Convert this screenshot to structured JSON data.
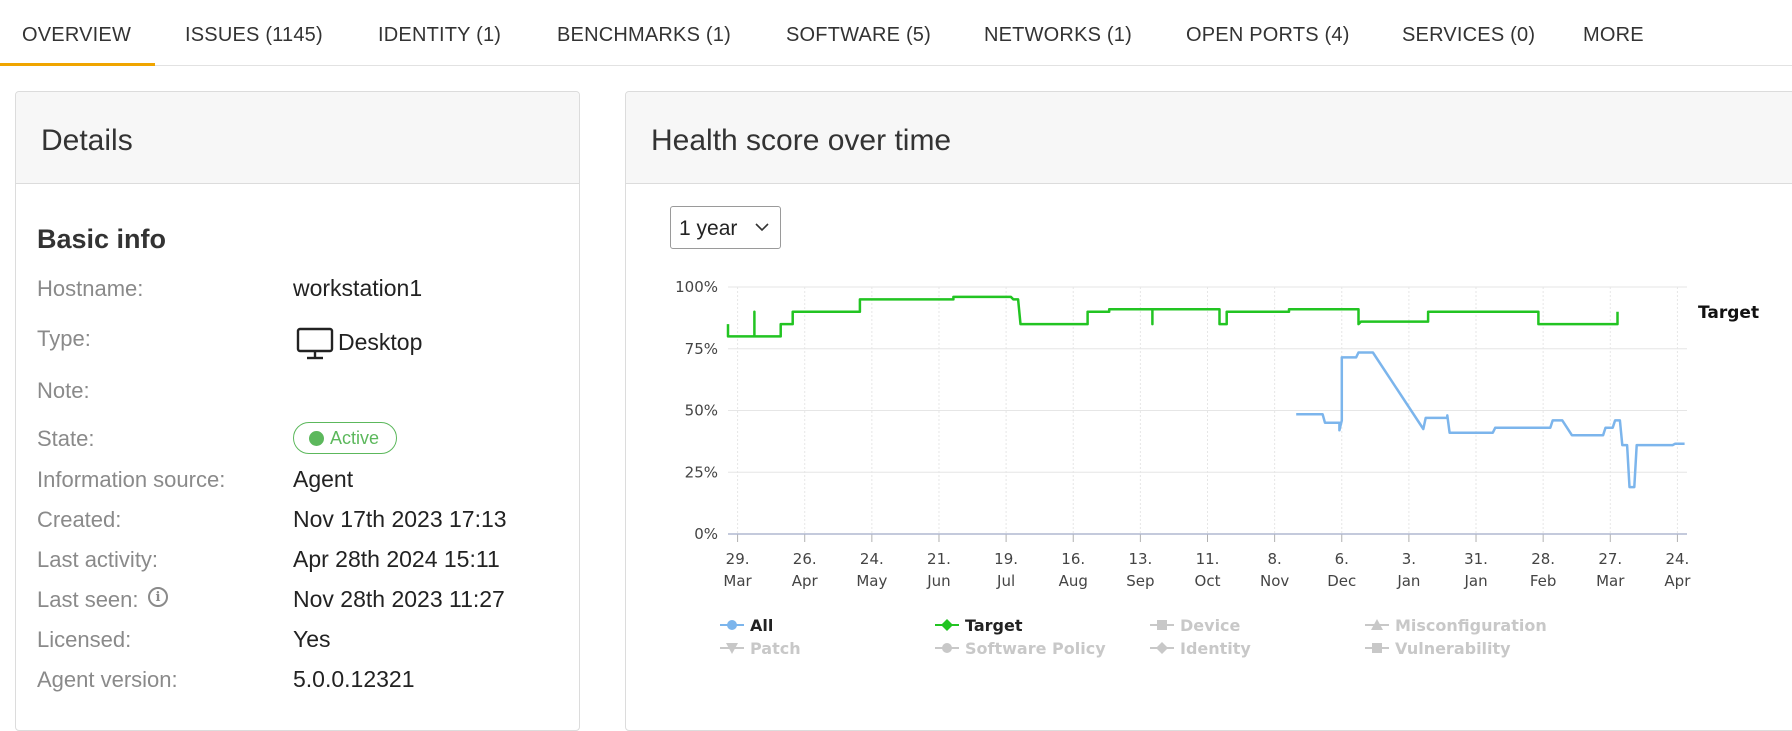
{
  "tabs": [
    {
      "label": "OVERVIEW"
    },
    {
      "label": "ISSUES (1145)"
    },
    {
      "label": "IDENTITY (1)"
    },
    {
      "label": "BENCHMARKS (1)"
    },
    {
      "label": "SOFTWARE (5)"
    },
    {
      "label": "NETWORKS (1)"
    },
    {
      "label": "OPEN PORTS (4)"
    },
    {
      "label": "SERVICES (0)"
    },
    {
      "label": "MORE"
    }
  ],
  "active_tab": "OVERVIEW",
  "colors": {
    "accent": "#f0a500",
    "active_green": "#5cb85c",
    "target_line": "#22c422",
    "all_line": "#7cb5ec",
    "muted": "#c8c8c8"
  },
  "details": {
    "title": "Details",
    "section": "Basic info",
    "hostname_label": "Hostname:",
    "hostname": "workstation1",
    "type_label": "Type:",
    "type_icon": "desktop-icon",
    "type": "Desktop",
    "note_label": "Note:",
    "state_label": "State:",
    "state": "Active",
    "source_label": "Information source:",
    "source": "Agent",
    "created_label": "Created:",
    "created": "Nov 17th 2023 17:13",
    "last_activity_label": "Last activity:",
    "last_activity": "Apr 28th 2024 15:11",
    "last_seen_label": "Last seen:",
    "last_seen_icon": "info-icon",
    "last_seen": "Nov 28th 2023 11:27",
    "licensed_label": "Licensed:",
    "licensed": "Yes",
    "agent_version_label": "Agent version:",
    "agent_version": "5.0.0.12321"
  },
  "health": {
    "title": "Health score over time",
    "range": "1 year",
    "target_label": "Target"
  },
  "chart_data": {
    "type": "line",
    "title": "",
    "xlabel": "",
    "ylabel": "",
    "ylim": [
      0,
      100
    ],
    "xlim": [
      "2023-03-25",
      "2024-04-28"
    ],
    "y_ticks": [
      "0%",
      "25%",
      "50%",
      "75%",
      "100%"
    ],
    "x_ticks": [
      {
        "date": "2023-03-29",
        "day": "29.",
        "month": "Mar"
      },
      {
        "date": "2023-04-26",
        "day": "26.",
        "month": "Apr"
      },
      {
        "date": "2023-05-24",
        "day": "24.",
        "month": "May"
      },
      {
        "date": "2023-06-21",
        "day": "21.",
        "month": "Jun"
      },
      {
        "date": "2023-07-19",
        "day": "19.",
        "month": "Jul"
      },
      {
        "date": "2023-08-16",
        "day": "16.",
        "month": "Aug"
      },
      {
        "date": "2023-09-13",
        "day": "13.",
        "month": "Sep"
      },
      {
        "date": "2023-10-11",
        "day": "11.",
        "month": "Oct"
      },
      {
        "date": "2023-11-08",
        "day": "8.",
        "month": "Nov"
      },
      {
        "date": "2023-12-06",
        "day": "6.",
        "month": "Dec"
      },
      {
        "date": "2024-01-03",
        "day": "3.",
        "month": "Jan"
      },
      {
        "date": "2024-01-31",
        "day": "31.",
        "month": "Jan"
      },
      {
        "date": "2024-02-28",
        "day": "28.",
        "month": "Feb"
      },
      {
        "date": "2024-03-27",
        "day": "27.",
        "month": "Mar"
      },
      {
        "date": "2024-04-24",
        "day": "24.",
        "month": "Apr"
      }
    ],
    "grid": true,
    "series": [
      {
        "name": "All",
        "color": "#7cb5ec",
        "points": [
          [
            "2023-11-17",
            48.5
          ],
          [
            "2023-11-28",
            48.5
          ],
          [
            "2023-11-29",
            45
          ],
          [
            "2023-12-05",
            45
          ],
          [
            "2023-12-05",
            42
          ],
          [
            "2023-12-06",
            46
          ],
          [
            "2023-12-06",
            71.5
          ],
          [
            "2023-12-12",
            71.5
          ],
          [
            "2023-12-13",
            73.5
          ],
          [
            "2023-12-19",
            73.5
          ],
          [
            "2024-01-09",
            42.5
          ],
          [
            "2024-01-10",
            47
          ],
          [
            "2024-01-19",
            47
          ],
          [
            "2024-01-19",
            48
          ],
          [
            "2024-01-20",
            41
          ],
          [
            "2024-02-07",
            41
          ],
          [
            "2024-02-08",
            43
          ],
          [
            "2024-03-02",
            43
          ],
          [
            "2024-03-03",
            46
          ],
          [
            "2024-03-07",
            46
          ],
          [
            "2024-03-11",
            40
          ],
          [
            "2024-03-24",
            40
          ],
          [
            "2024-03-25",
            43
          ],
          [
            "2024-03-28",
            43
          ],
          [
            "2024-03-29",
            46
          ],
          [
            "2024-03-31",
            46
          ],
          [
            "2024-04-01",
            36
          ],
          [
            "2024-04-03",
            36
          ],
          [
            "2024-04-04",
            19
          ],
          [
            "2024-04-06",
            19
          ],
          [
            "2024-04-07",
            36
          ],
          [
            "2024-04-22",
            36
          ],
          [
            "2024-04-23",
            36.5
          ],
          [
            "2024-04-27",
            36.5
          ]
        ]
      },
      {
        "name": "Target",
        "color": "#22c422",
        "points": [
          [
            "2023-03-25",
            85
          ],
          [
            "2023-03-25",
            80
          ],
          [
            "2023-04-05",
            80
          ],
          [
            "2023-04-05",
            90
          ],
          [
            "2023-04-05",
            80
          ],
          [
            "2023-04-16",
            80
          ],
          [
            "2023-04-16",
            85
          ],
          [
            "2023-04-21",
            85
          ],
          [
            "2023-04-21",
            90
          ],
          [
            "2023-05-19",
            90
          ],
          [
            "2023-05-19",
            95
          ],
          [
            "2023-06-27",
            95
          ],
          [
            "2023-06-27",
            96
          ],
          [
            "2023-07-21",
            96
          ],
          [
            "2023-07-22",
            95
          ],
          [
            "2023-07-24",
            95
          ],
          [
            "2023-07-25",
            85
          ],
          [
            "2023-08-22",
            85
          ],
          [
            "2023-08-22",
            90
          ],
          [
            "2023-08-31",
            90
          ],
          [
            "2023-08-31",
            91
          ],
          [
            "2023-09-18",
            91
          ],
          [
            "2023-09-18",
            85
          ],
          [
            "2023-09-18",
            91
          ],
          [
            "2023-10-16",
            91
          ],
          [
            "2023-10-16",
            85
          ],
          [
            "2023-10-19",
            85
          ],
          [
            "2023-10-19",
            90
          ],
          [
            "2023-11-14",
            90
          ],
          [
            "2023-11-14",
            91
          ],
          [
            "2023-12-13",
            91
          ],
          [
            "2023-12-13",
            85
          ],
          [
            "2023-12-14",
            86
          ],
          [
            "2024-01-11",
            86
          ],
          [
            "2024-01-11",
            90
          ],
          [
            "2024-02-26",
            90
          ],
          [
            "2024-02-26",
            85
          ],
          [
            "2024-03-30",
            85
          ],
          [
            "2024-03-30",
            90
          ]
        ]
      }
    ],
    "legend": {
      "placement": "bottom",
      "items": [
        {
          "name": "All",
          "symbol": "circle",
          "color": "#7cb5ec",
          "active": true
        },
        {
          "name": "Target",
          "symbol": "diamond",
          "color": "#22c422",
          "active": true
        },
        {
          "name": "Device",
          "symbol": "square",
          "color": "#c8c8c8",
          "active": false
        },
        {
          "name": "Misconfiguration",
          "symbol": "triangle",
          "color": "#c8c8c8",
          "active": false
        },
        {
          "name": "Patch",
          "symbol": "triangle-down",
          "color": "#c8c8c8",
          "active": false
        },
        {
          "name": "Software Policy",
          "symbol": "circle",
          "color": "#c8c8c8",
          "active": false
        },
        {
          "name": "Identity",
          "symbol": "diamond",
          "color": "#c8c8c8",
          "active": false
        },
        {
          "name": "Vulnerability",
          "symbol": "square",
          "color": "#c8c8c8",
          "active": false
        }
      ]
    }
  }
}
